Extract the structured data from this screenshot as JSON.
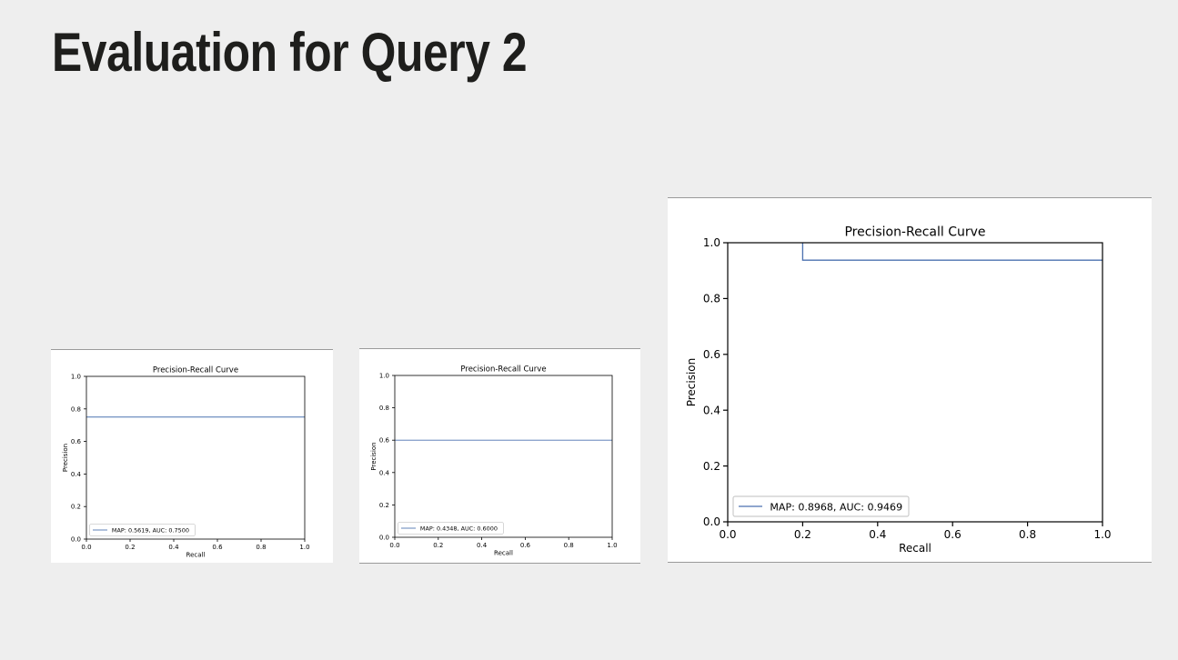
{
  "slide": {
    "title": "Evaluation for Query 2"
  },
  "chart_data": [
    {
      "type": "line",
      "title": "Precision-Recall Curve",
      "xlabel": "Recall",
      "ylabel": "Precision",
      "xlim": [
        0.0,
        1.0
      ],
      "ylim": [
        0.0,
        1.0
      ],
      "xticks": [
        "0.0",
        "0.2",
        "0.4",
        "0.6",
        "0.8",
        "1.0"
      ],
      "yticks": [
        "0.0",
        "0.2",
        "0.4",
        "0.6",
        "0.8",
        "1.0"
      ],
      "grid": false,
      "legend_position": "lower-left",
      "series": [
        {
          "name": "MAP: 0.5619, AUC: 0.7500",
          "color": "#4c72b0",
          "x": [
            0.0,
            1.0
          ],
          "y": [
            0.75,
            0.75
          ]
        }
      ]
    },
    {
      "type": "line",
      "title": "Precision-Recall Curve",
      "xlabel": "Recall",
      "ylabel": "Precision",
      "xlim": [
        0.0,
        1.0
      ],
      "ylim": [
        0.0,
        1.0
      ],
      "xticks": [
        "0.0",
        "0.2",
        "0.4",
        "0.6",
        "0.8",
        "1.0"
      ],
      "yticks": [
        "0.0",
        "0.2",
        "0.4",
        "0.6",
        "0.8",
        "1.0"
      ],
      "grid": false,
      "legend_position": "lower-left",
      "series": [
        {
          "name": "MAP: 0.4348, AUC: 0.6000",
          "color": "#4c72b0",
          "x": [
            0.0,
            1.0
          ],
          "y": [
            0.6,
            0.6
          ]
        }
      ]
    },
    {
      "type": "line",
      "title": "Precision-Recall Curve",
      "xlabel": "Recall",
      "ylabel": "Precision",
      "xlim": [
        0.0,
        1.0
      ],
      "ylim": [
        0.0,
        1.0
      ],
      "xticks": [
        "0.0",
        "0.2",
        "0.4",
        "0.6",
        "0.8",
        "1.0"
      ],
      "yticks": [
        "0.0",
        "0.2",
        "0.4",
        "0.6",
        "0.8",
        "1.0"
      ],
      "grid": false,
      "legend_position": "lower-left",
      "series": [
        {
          "name": "MAP: 0.8968, AUC: 0.9469",
          "color": "#4c72b0",
          "x": [
            0.2,
            0.2,
            1.0
          ],
          "y": [
            1.0,
            0.9375,
            0.9375
          ]
        }
      ]
    }
  ]
}
